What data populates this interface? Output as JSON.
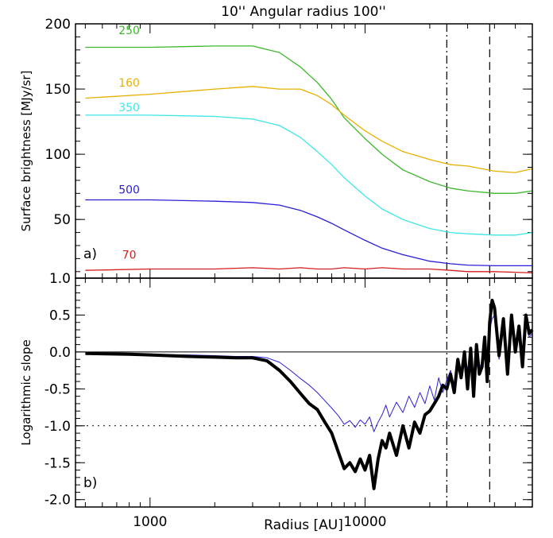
{
  "chart_data": [
    {
      "type": "line",
      "panel_tag": "a)",
      "top_label": "10'' Angular radius  100''",
      "ylabel": "Surface brightness [MJy/sr]",
      "xscale": "log",
      "xlim": [
        450,
        60000
      ],
      "ylim": [
        5,
        200
      ],
      "yticks": [
        50,
        100,
        150,
        200
      ],
      "ytick_labels": [
        "50",
        "100",
        "150",
        "200"
      ],
      "vlines": [
        {
          "x": 24000,
          "style": "dashdot"
        },
        {
          "x": 38000,
          "style": "dashed"
        }
      ],
      "series": [
        {
          "name": "250",
          "color": "#3cb82b",
          "label_at": [
            800,
            192
          ],
          "x": [
            500,
            1000,
            2000,
            3000,
            4000,
            5000,
            6000,
            7000,
            8000,
            10000,
            12000,
            15000,
            20000,
            25000,
            30000,
            40000,
            50000,
            60000
          ],
          "y": [
            182,
            182,
            183,
            183,
            178,
            167,
            155,
            142,
            128,
            112,
            100,
            88,
            79,
            74,
            72,
            70,
            70,
            72
          ]
        },
        {
          "name": "160",
          "color": "#e8b000",
          "label_at": [
            800,
            152
          ],
          "x": [
            500,
            1000,
            2000,
            3000,
            4000,
            5000,
            6000,
            7000,
            8000,
            10000,
            12000,
            15000,
            20000,
            25000,
            30000,
            40000,
            50000,
            60000
          ],
          "y": [
            143,
            146,
            150,
            152,
            150,
            150,
            145,
            138,
            130,
            118,
            110,
            102,
            96,
            92,
            91,
            87,
            86,
            89
          ]
        },
        {
          "name": "350",
          "color": "#3fe6e6",
          "label_at": [
            800,
            133
          ],
          "x": [
            500,
            1000,
            2000,
            3000,
            4000,
            5000,
            6000,
            7000,
            8000,
            10000,
            12000,
            15000,
            20000,
            25000,
            30000,
            40000,
            50000,
            60000
          ],
          "y": [
            130,
            130,
            129,
            127,
            122,
            113,
            102,
            92,
            82,
            68,
            58,
            50,
            43,
            40,
            39,
            38,
            38,
            40
          ]
        },
        {
          "name": "500",
          "color": "#2a1fd6",
          "label_at": [
            800,
            70
          ],
          "x": [
            500,
            1000,
            2000,
            3000,
            4000,
            5000,
            6000,
            7000,
            8000,
            10000,
            12000,
            15000,
            20000,
            25000,
            30000,
            40000,
            50000,
            60000
          ],
          "y": [
            65,
            65,
            64,
            63,
            61,
            57,
            52,
            47,
            42,
            34,
            28,
            23,
            18,
            16,
            15,
            14.5,
            14.5,
            14.5
          ]
        },
        {
          "name": "70",
          "color": "#d21e1e",
          "label_at": [
            800,
            20
          ],
          "x": [
            500,
            1000,
            2000,
            3000,
            4000,
            5000,
            6000,
            7000,
            8000,
            10000,
            12000,
            15000,
            20000,
            25000,
            30000,
            40000,
            50000,
            60000
          ],
          "y": [
            11,
            12,
            12,
            13,
            12,
            13,
            12,
            12,
            13,
            12,
            13,
            12,
            12,
            11,
            10,
            10,
            9.5,
            9
          ]
        }
      ]
    },
    {
      "type": "line",
      "panel_tag": "b)",
      "xlabel": "Radius [AU]",
      "ylabel": "Logarithmic slope",
      "xscale": "log",
      "xlim": [
        450,
        60000
      ],
      "ylim": [
        -2.1,
        1.0
      ],
      "xticks": [
        1000,
        10000
      ],
      "xtick_labels": [
        "1000",
        "10000"
      ],
      "yticks": [
        -2.0,
        -1.5,
        -1.0,
        -0.5,
        0.0,
        0.5,
        1.0
      ],
      "ytick_labels": [
        "-2.0",
        "-1.5",
        "-1.0",
        "-0.5",
        "0.0",
        "0.5",
        "1.0"
      ],
      "hlines": [
        {
          "y": 0.0,
          "style": "solid"
        },
        {
          "y": -1.0,
          "style": "dotted"
        }
      ],
      "vlines": [
        {
          "x": 24000,
          "style": "dashdot"
        },
        {
          "x": 38000,
          "style": "dashed"
        }
      ],
      "series": [
        {
          "color": "#2a1fd6",
          "width": 1,
          "x": [
            500,
            800,
            1000,
            1500,
            2000,
            2500,
            3000,
            3500,
            4000,
            4500,
            5000,
            5500,
            6000,
            6500,
            7000,
            7500,
            8000,
            8500,
            9000,
            9500,
            10000,
            10500,
            11000,
            11500,
            12000,
            12500,
            13000,
            14000,
            15000,
            16000,
            17000,
            18000,
            19000,
            20000,
            21000,
            22000,
            23000,
            24000,
            25000,
            26000,
            27000,
            28000,
            29000,
            30000,
            31000,
            32000,
            33000,
            34000,
            35000,
            36000,
            37000,
            38000,
            39000,
            40000,
            42000,
            44000,
            46000,
            48000,
            50000,
            52000,
            54000,
            56000,
            58000,
            60000
          ],
          "y": [
            -0.01,
            -0.02,
            -0.03,
            -0.04,
            -0.05,
            -0.06,
            -0.06,
            -0.08,
            -0.14,
            -0.25,
            -0.36,
            -0.45,
            -0.55,
            -0.66,
            -0.76,
            -0.86,
            -0.98,
            -0.93,
            -1.02,
            -0.92,
            -0.98,
            -0.88,
            -1.08,
            -0.95,
            -0.85,
            -0.72,
            -0.88,
            -0.68,
            -0.82,
            -0.6,
            -0.75,
            -0.55,
            -0.7,
            -0.46,
            -0.65,
            -0.35,
            -0.55,
            -0.38,
            -0.25,
            -0.45,
            -0.1,
            -0.3,
            0.0,
            -0.25,
            0.05,
            -0.35,
            0.1,
            -0.2,
            -0.15,
            0.15,
            -0.3,
            0.3,
            0.45,
            0.5,
            -0.1,
            0.35,
            -0.2,
            0.4,
            0.05,
            0.3,
            -0.15,
            0.45,
            0.2,
            0.25
          ]
        },
        {
          "color": "#000000",
          "width": 4,
          "x": [
            500,
            800,
            1000,
            1500,
            2000,
            2500,
            3000,
            3500,
            4000,
            4500,
            5000,
            5500,
            6000,
            6500,
            7000,
            7500,
            8000,
            8500,
            9000,
            9500,
            10000,
            10500,
            11000,
            11500,
            12000,
            12500,
            13000,
            14000,
            15000,
            16000,
            17000,
            18000,
            19000,
            20000,
            21000,
            22000,
            23000,
            24000,
            25000,
            26000,
            27000,
            28000,
            29000,
            30000,
            31000,
            32000,
            33000,
            34000,
            35000,
            36000,
            37000,
            38000,
            39000,
            40000,
            42000,
            44000,
            46000,
            48000,
            50000,
            52000,
            54000,
            56000,
            58000,
            60000
          ],
          "y": [
            -0.02,
            -0.03,
            -0.04,
            -0.06,
            -0.07,
            -0.08,
            -0.08,
            -0.12,
            -0.25,
            -0.4,
            -0.56,
            -0.7,
            -0.78,
            -0.95,
            -1.1,
            -1.35,
            -1.58,
            -1.5,
            -1.62,
            -1.45,
            -1.6,
            -1.4,
            -1.85,
            -1.45,
            -1.2,
            -1.3,
            -1.1,
            -1.4,
            -1.0,
            -1.3,
            -0.95,
            -1.1,
            -0.85,
            -0.8,
            -0.7,
            -0.6,
            -0.45,
            -0.5,
            -0.3,
            -0.55,
            -0.1,
            -0.35,
            0.0,
            -0.5,
            0.05,
            -0.6,
            0.1,
            -0.3,
            -0.2,
            0.2,
            -0.4,
            0.4,
            0.7,
            0.6,
            -0.05,
            0.45,
            -0.3,
            0.5,
            0.0,
            0.35,
            -0.2,
            0.5,
            0.25,
            0.3
          ]
        }
      ]
    }
  ]
}
